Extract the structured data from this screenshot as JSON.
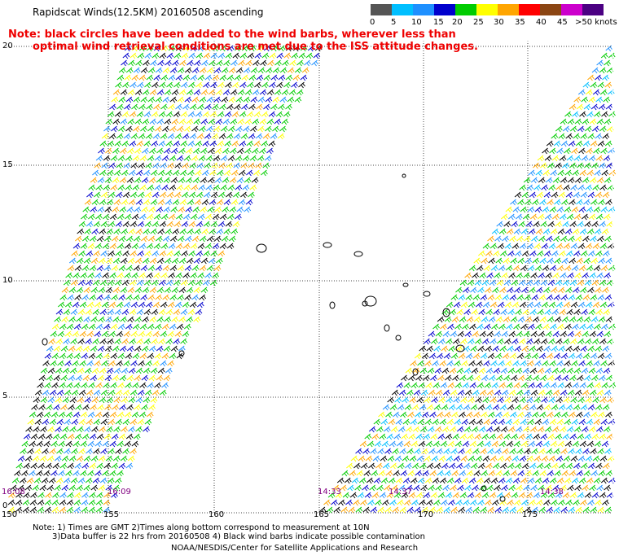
{
  "title": "Rapidscat Winds(12.5KM) 20160508 ascending",
  "note": {
    "line1": "Note: black circles have been added to the wind barbs, wherever less than",
    "line2": "optimal wind retrieval conditions are met due to the ISS attitude changes."
  },
  "legend": {
    "unit": ">50 knots",
    "ticks": [
      "0",
      "5",
      "10",
      "15",
      "20",
      "25",
      "30",
      "35",
      "40",
      "45",
      ">50 knots"
    ],
    "colors": [
      "#555555",
      "#00bfff",
      "#1e90ff",
      "#0000cd",
      "#00cc00",
      "#ffff00",
      "#ffa500",
      "#ff0000",
      "#8b4513",
      "#cc00cc",
      "#4b0082"
    ]
  },
  "axes": {
    "lon_labels": [
      "150",
      "155",
      "160",
      "165",
      "170",
      "175"
    ],
    "lat_labels": [
      "20",
      "15",
      "10",
      "5",
      "0"
    ]
  },
  "swath_times": [
    "16:08",
    "16:09",
    "14:33",
    "14:37",
    "14:38"
  ],
  "footer": {
    "line1": "Note: 1) Times are GMT 2)Times along bottom correspond to measurement at 10N",
    "line2": "3)Data buffer is 22 hrs from 20160508 4) Black wind barbs indicate possible contamination",
    "line3": "NOAA/NESDIS/Center for Satellite Applications and Research"
  },
  "swaths": [
    {
      "name": "west-swath",
      "colors": [
        "#00cc00",
        "#00cc00",
        "#1e90ff",
        "#0000cd",
        "#ffff00",
        "#00cc00",
        "#ffa500",
        "#000000"
      ]
    },
    {
      "name": "east-swath",
      "colors": [
        "#00cc00",
        "#1e90ff",
        "#0000cd",
        "#00cc00",
        "#ffff00",
        "#ffa500",
        "#000000",
        "#00bfff"
      ]
    }
  ]
}
